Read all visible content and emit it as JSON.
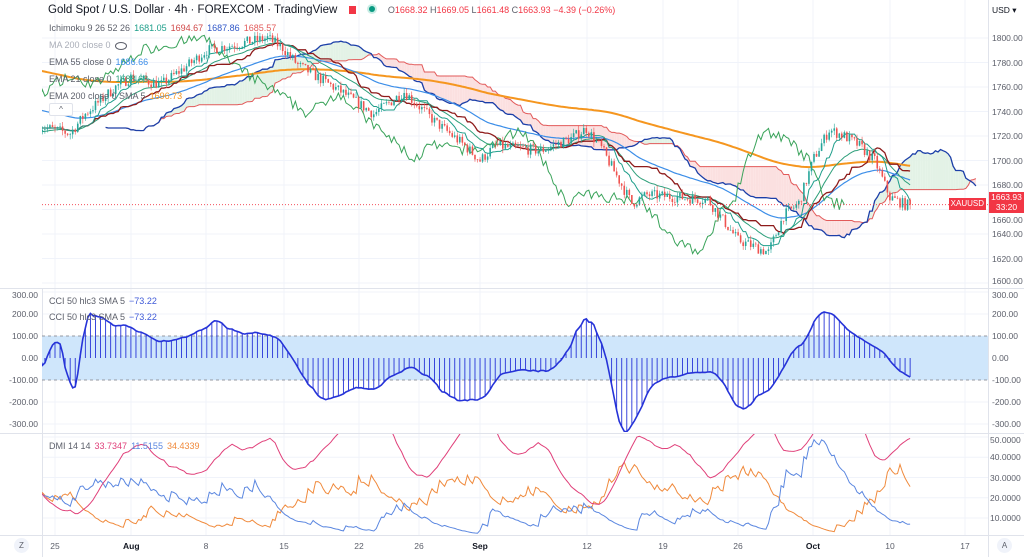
{
  "header": {
    "title": "Gold Spot / U.S. Dollar · 4h · FOREXCOM · TradingView",
    "flag_icon": "red-flag-icon",
    "status_icon": "market-open-dot-icon",
    "ohlc": {
      "o_label": "O",
      "o": "1668.32",
      "h_label": "H",
      "h": "1669.05",
      "l_label": "L",
      "l": "1661.48",
      "c_label": "C",
      "c": "1663.93",
      "change": "−4.39 (−0.26%)"
    }
  },
  "indicators": {
    "ichimoku": {
      "label": "Ichimoku 9 26 52 26",
      "v1": "1681.05",
      "v2": "1694.67",
      "v3": "1687.86",
      "v4": "1685.57"
    },
    "ma200": {
      "label": "MA 200 close 0",
      "icon": "eye-hidden-icon"
    },
    "ema55": {
      "label": "EMA 55 close 0",
      "value": "1686.66"
    },
    "ema21": {
      "label": "EMA 21 close 0",
      "value": "1688.68"
    },
    "ema200": {
      "label": "EMA 200 close 0 SMA 5",
      "value": "1696.73"
    },
    "cci1": {
      "label": "CCI 50 hlc3 SMA 5",
      "value": "−73.22"
    },
    "cci2": {
      "label": "CCI 50 hlc3 SMA 5",
      "value": "−73.22"
    },
    "dmi": {
      "label": "DMI 14 14",
      "adx": "33.7347",
      "plus_di": "11.5155",
      "minus_di": "34.4339"
    }
  },
  "price_axis": {
    "currency": "USD ▾",
    "ticks": [
      "1800.00",
      "1780.00",
      "1760.00",
      "1740.00",
      "1720.00",
      "1700.00",
      "1680.00",
      "1660.00",
      "1640.00",
      "1620.00",
      "1600.00"
    ],
    "last_price": "1663.93",
    "countdown": "33:20",
    "symbol": "XAUUSD"
  },
  "cci_axis": {
    "ticks": [
      "300.00",
      "200.00",
      "100.00",
      "0.00",
      "-100.00",
      "-200.00",
      "-300.00"
    ]
  },
  "dmi_axis": {
    "ticks": [
      "50.0000",
      "40.0000",
      "30.0000",
      "20.0000",
      "10.0000"
    ]
  },
  "time_axis": {
    "ticks": [
      "25",
      "Aug",
      "8",
      "15",
      "22",
      "26",
      "Sep",
      "12",
      "19",
      "26",
      "Oct",
      "10",
      "17"
    ],
    "bold": [
      "Aug",
      "Sep",
      "Oct"
    ]
  },
  "buttons": {
    "zoom": "Z",
    "auto": "A",
    "collapse": "^"
  },
  "colors": {
    "bull": "#26a69a",
    "bear": "#ef5350",
    "conversion": "#1e9e8a",
    "base": "#8e1b1b",
    "lead_a": "#1c3fa8",
    "lead_b": "#e25a5a",
    "lagging": "#3aa35a",
    "ema21": "#2e9f7a",
    "ema55": "#3c8ee8",
    "ema200": "#f5961f",
    "cci": "#2633d8",
    "cci_band": "#cfe6fb",
    "adx": "#e0407a",
    "plus_di": "#5b87e0",
    "minus_di": "#f08a3c"
  },
  "chart_data": {
    "type": "candlestick",
    "timeframe": "4h",
    "symbol": "XAUUSD",
    "yrange_price": [
      1600,
      1810
    ],
    "yrange_cci": [
      -300,
      300
    ],
    "cci_bands": [
      100,
      -100
    ],
    "yrange_dmi": [
      5,
      50
    ],
    "close_path": [
      [
        "2022-07-22",
        1728
      ],
      [
        "2022-07-26",
        1722
      ],
      [
        "2022-07-27",
        1738
      ],
      [
        "2022-07-29",
        1760
      ],
      [
        "2022-08-01",
        1768
      ],
      [
        "2022-08-03",
        1762
      ],
      [
        "2022-08-05",
        1780
      ],
      [
        "2022-08-08",
        1790
      ],
      [
        "2022-08-10",
        1795
      ],
      [
        "2022-08-12",
        1800
      ],
      [
        "2022-08-15",
        1792
      ],
      [
        "2022-08-16",
        1778
      ],
      [
        "2022-08-19",
        1755
      ],
      [
        "2022-08-23",
        1738
      ],
      [
        "2022-08-25",
        1756
      ],
      [
        "2022-08-29",
        1732
      ],
      [
        "2022-08-31",
        1712
      ],
      [
        "2022-09-01",
        1700
      ],
      [
        "2022-09-02",
        1712
      ],
      [
        "2022-09-07",
        1708
      ],
      [
        "2022-09-09",
        1718
      ],
      [
        "2022-09-12",
        1726
      ],
      [
        "2022-09-13",
        1710
      ],
      [
        "2022-09-15",
        1665
      ],
      [
        "2022-09-16",
        1672
      ],
      [
        "2022-09-20",
        1670
      ],
      [
        "2022-09-22",
        1668
      ],
      [
        "2022-09-26",
        1635
      ],
      [
        "2022-09-28",
        1625
      ],
      [
        "2022-09-29",
        1655
      ],
      [
        "2022-09-30",
        1665
      ],
      [
        "2022-10-03",
        1702
      ],
      [
        "2022-10-04",
        1725
      ],
      [
        "2022-10-05",
        1720
      ],
      [
        "2022-10-06",
        1712
      ],
      [
        "2022-10-07",
        1700
      ],
      [
        "2022-10-10",
        1670
      ],
      [
        "2022-10-11",
        1663.93
      ]
    ]
  }
}
